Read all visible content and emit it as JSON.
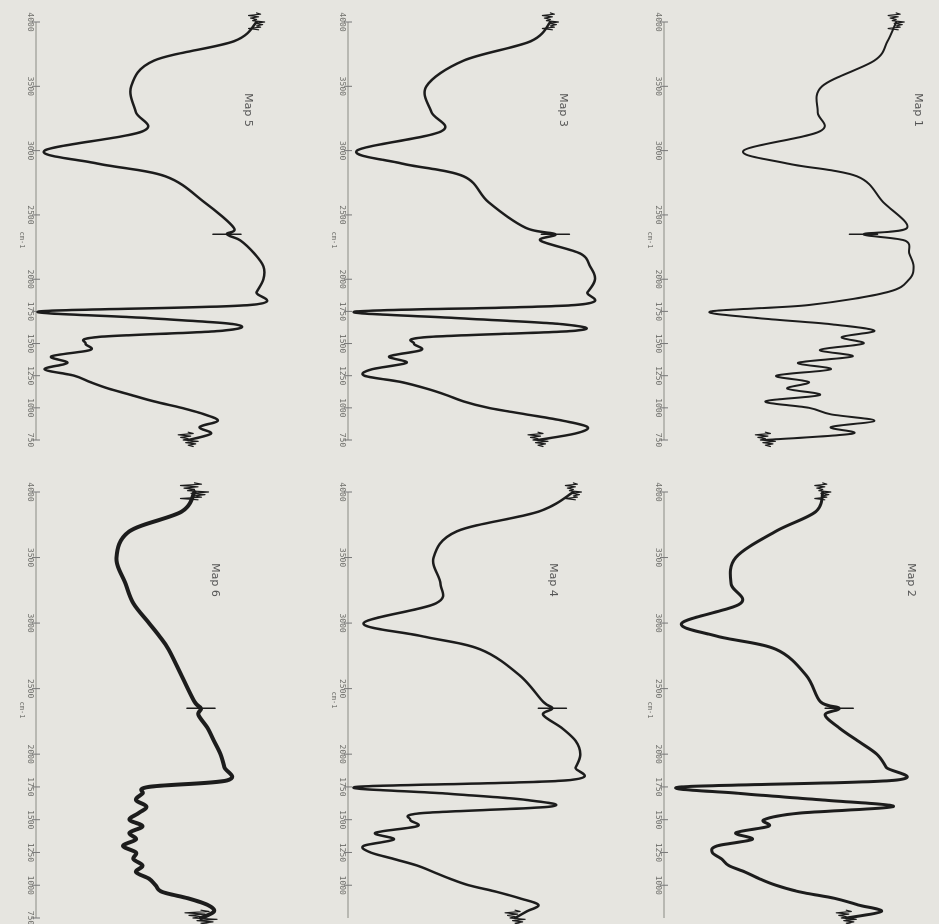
{
  "figure": {
    "orientation": "rotated 90° clockwise (wavenumber runs top-to-bottom)",
    "layout": "3 rows x 2 columns",
    "background_color": "#e6e5e0",
    "trace_color": "#1c1c1c"
  },
  "chart_data": [
    {
      "type": "line",
      "title": "Map 1",
      "xlabel": "cm-1",
      "x_ticks": [
        "4000",
        "3500",
        "3000",
        "2500",
        "2000",
        "1750",
        "1500",
        "1250",
        "1000",
        "750"
      ],
      "xlim": [
        4000,
        750
      ],
      "series": [
        {
          "x": [
            4000,
            3850,
            3700,
            3500,
            3300,
            3150,
            3000,
            2900,
            2800,
            2600,
            2400,
            2350,
            2300,
            2200,
            2100,
            2000,
            1900,
            1800,
            1750,
            1700,
            1650,
            1600,
            1550,
            1500,
            1450,
            1400,
            1350,
            1300,
            1250,
            1200,
            1150,
            1100,
            1050,
            1000,
            950,
            900,
            850,
            800,
            750
          ],
          "values": [
            0.9,
            0.86,
            0.8,
            0.56,
            0.54,
            0.55,
            0.2,
            0.4,
            0.72,
            0.84,
            0.95,
            0.75,
            0.94,
            0.96,
            0.98,
            0.96,
            0.86,
            0.5,
            0.05,
            0.25,
            0.6,
            0.8,
            0.65,
            0.75,
            0.55,
            0.7,
            0.45,
            0.6,
            0.35,
            0.5,
            0.4,
            0.55,
            0.3,
            0.5,
            0.6,
            0.8,
            0.6,
            0.7,
            0.3
          ]
        }
      ]
    },
    {
      "type": "line",
      "title": "Map 2",
      "xlabel": "cm-1",
      "x_ticks": [
        "4000",
        "3500",
        "3000",
        "2500",
        "2000",
        "1750",
        "1500",
        "1250",
        "1000"
      ],
      "xlim": [
        4000,
        750
      ],
      "series": [
        {
          "x": [
            4000,
            3850,
            3700,
            3500,
            3300,
            3150,
            3000,
            2900,
            2800,
            2600,
            2400,
            2350,
            2300,
            2200,
            2100,
            2000,
            1900,
            1800,
            1750,
            1700,
            1650,
            1600,
            1550,
            1500,
            1450,
            1400,
            1350,
            1300,
            1250,
            1200,
            1150,
            1100,
            1050,
            1000,
            950,
            900,
            850,
            800,
            750
          ],
          "values": [
            0.65,
            0.62,
            0.45,
            0.28,
            0.26,
            0.3,
            0.05,
            0.2,
            0.45,
            0.58,
            0.64,
            0.72,
            0.66,
            0.72,
            0.8,
            0.88,
            0.92,
            0.95,
            0.05,
            0.3,
            0.65,
            0.95,
            0.55,
            0.4,
            0.42,
            0.28,
            0.35,
            0.2,
            0.18,
            0.22,
            0.25,
            0.32,
            0.38,
            0.45,
            0.55,
            0.7,
            0.8,
            0.9,
            0.75
          ]
        }
      ]
    },
    {
      "type": "line",
      "title": "Map 3",
      "xlabel": "cm-1",
      "x_ticks": [
        "4000",
        "3500",
        "3000",
        "2500",
        "2000",
        "1750",
        "1500",
        "1250",
        "1000",
        "750"
      ],
      "xlim": [
        4000,
        750
      ],
      "series": [
        {
          "x": [
            4000,
            3850,
            3700,
            3500,
            3300,
            3150,
            3000,
            2900,
            2800,
            2600,
            2400,
            2350,
            2300,
            2200,
            2100,
            2000,
            1900,
            1800,
            1750,
            1700,
            1650,
            1600,
            1550,
            1500,
            1450,
            1400,
            1350,
            1300,
            1250,
            1200,
            1150,
            1100,
            1050,
            1000,
            950,
            900,
            850,
            800,
            750
          ],
          "values": [
            0.8,
            0.72,
            0.45,
            0.3,
            0.32,
            0.36,
            0.02,
            0.2,
            0.45,
            0.55,
            0.7,
            0.82,
            0.76,
            0.92,
            0.96,
            0.98,
            0.95,
            0.9,
            0.02,
            0.4,
            0.85,
            0.9,
            0.3,
            0.25,
            0.28,
            0.15,
            0.22,
            0.08,
            0.05,
            0.2,
            0.3,
            0.38,
            0.45,
            0.55,
            0.7,
            0.85,
            0.95,
            0.9,
            0.75
          ]
        }
      ]
    },
    {
      "type": "line",
      "title": "Map 4",
      "xlabel": "cm-1",
      "x_ticks": [
        "4000",
        "3500",
        "3000",
        "2500",
        "2000",
        "1750",
        "1500",
        "1250",
        "1000"
      ],
      "xlim": [
        4000,
        750
      ],
      "series": [
        {
          "x": [
            4000,
            3850,
            3700,
            3500,
            3300,
            3150,
            3000,
            2900,
            2800,
            2600,
            2400,
            2350,
            2300,
            2200,
            2100,
            2000,
            1900,
            1800,
            1750,
            1700,
            1650,
            1600,
            1550,
            1500,
            1450,
            1400,
            1350,
            1300,
            1250,
            1200,
            1150,
            1100,
            1050,
            1000,
            950,
            900,
            850,
            800,
            750
          ],
          "values": [
            0.95,
            0.8,
            0.45,
            0.35,
            0.38,
            0.36,
            0.05,
            0.3,
            0.55,
            0.72,
            0.82,
            0.86,
            0.82,
            0.9,
            0.96,
            0.98,
            0.96,
            0.92,
            0.02,
            0.4,
            0.75,
            0.85,
            0.3,
            0.25,
            0.28,
            0.1,
            0.18,
            0.05,
            0.08,
            0.18,
            0.28,
            0.35,
            0.42,
            0.5,
            0.62,
            0.72,
            0.8,
            0.75,
            0.7
          ]
        }
      ]
    },
    {
      "type": "line",
      "title": "Map 5",
      "xlabel": "cm-1",
      "x_ticks": [
        "4000",
        "3500",
        "3000",
        "2500",
        "2000",
        "1750",
        "1500",
        "1250",
        "1000",
        "750"
      ],
      "xlim": [
        4000,
        750
      ],
      "series": [
        {
          "x": [
            4000,
            3850,
            3700,
            3500,
            3300,
            3150,
            3000,
            2900,
            2800,
            2600,
            2400,
            2350,
            2300,
            2200,
            2100,
            2000,
            1900,
            1800,
            1750,
            1700,
            1650,
            1600,
            1550,
            1500,
            1450,
            1400,
            1350,
            1300,
            1250,
            1200,
            1150,
            1100,
            1050,
            1000,
            950,
            900,
            850,
            800,
            750
          ],
          "values": [
            0.95,
            0.85,
            0.5,
            0.4,
            0.42,
            0.45,
            0.02,
            0.25,
            0.55,
            0.72,
            0.85,
            0.82,
            0.88,
            0.94,
            0.98,
            0.98,
            0.95,
            0.92,
            0.0,
            0.45,
            0.85,
            0.8,
            0.25,
            0.2,
            0.22,
            0.05,
            0.12,
            0.02,
            0.15,
            0.22,
            0.3,
            0.4,
            0.5,
            0.62,
            0.72,
            0.78,
            0.7,
            0.75,
            0.65
          ]
        }
      ]
    },
    {
      "type": "line",
      "title": "Map 6",
      "xlabel": "cm-1",
      "x_ticks": [
        "4000",
        "3500",
        "3000",
        "2500",
        "2000",
        "1750",
        "1500",
        "1250",
        "1000",
        "750"
      ],
      "xlim": [
        4000,
        750
      ],
      "series": [
        {
          "x": [
            4000,
            3850,
            3700,
            3500,
            3300,
            3150,
            3000,
            2900,
            2800,
            2600,
            2400,
            2350,
            2300,
            2200,
            2100,
            2000,
            1900,
            1800,
            1750,
            1700,
            1650,
            1600,
            1550,
            1500,
            1450,
            1400,
            1350,
            1300,
            1250,
            1200,
            1150,
            1100,
            1050,
            1000,
            950,
            900,
            850,
            800,
            750
          ],
          "values": [
            0.65,
            0.55,
            0.15,
            0.05,
            0.12,
            0.18,
            0.3,
            0.38,
            0.45,
            0.55,
            0.65,
            0.7,
            0.68,
            0.75,
            0.8,
            0.85,
            0.88,
            0.9,
            0.3,
            0.25,
            0.2,
            0.28,
            0.22,
            0.15,
            0.25,
            0.15,
            0.2,
            0.1,
            0.2,
            0.18,
            0.25,
            0.2,
            0.3,
            0.35,
            0.4,
            0.6,
            0.75,
            0.8,
            0.7
          ]
        }
      ]
    }
  ]
}
